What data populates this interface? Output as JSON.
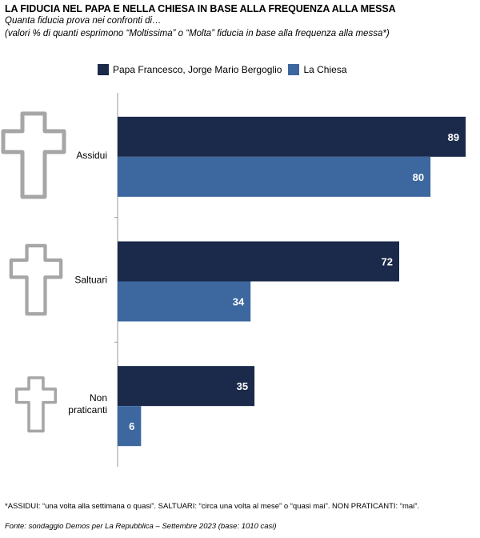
{
  "header": {
    "title": "LA FIDUCIA NEL PAPA E NELLA CHIESA IN BASE ALLA FREQUENZA ALLA MESSA",
    "subtitle": "Quanta fiducia prova nei confronti di…",
    "subtitle2": "(valori % di quanti esprimono “Moltissima” o “Molta” fiducia in base alla frequenza alla messa*)"
  },
  "chart_data": {
    "type": "bar",
    "orientation": "horizontal",
    "categories": [
      "Assidui",
      "Saltuari",
      "Non praticanti"
    ],
    "series": [
      {
        "name": "Papa Francesco, Jorge Mario Bergoglio",
        "values": [
          89,
          72,
          35
        ],
        "color": "#1b2a4a"
      },
      {
        "name": "La Chiesa",
        "values": [
          80,
          34,
          6
        ],
        "color": "#3c679f"
      }
    ],
    "xlim": [
      0,
      90
    ],
    "grid": false,
    "legend_position": "top",
    "category_icons": [
      "cross-icon",
      "cross-icon",
      "cross-icon"
    ]
  },
  "footer": {
    "footnote": "*ASSIDUI: “una volta alla settimana o quasi”. SALTUARI: “circa una volta al mese” o “quasi mai”. NON PRATICANTI: “mai”.",
    "source": "Fonte: sondaggio Demos per La Repubblica – Settembre 2023 (base: 1010 casi)"
  }
}
